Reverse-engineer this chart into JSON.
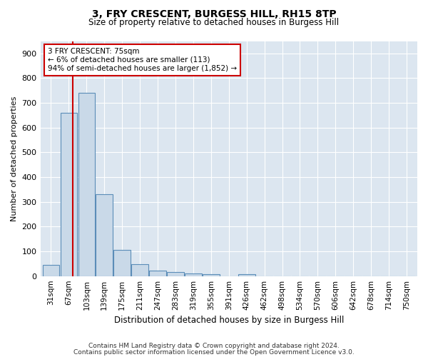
{
  "title1": "3, FRY CRESCENT, BURGESS HILL, RH15 8TP",
  "title2": "Size of property relative to detached houses in Burgess Hill",
  "xlabel": "Distribution of detached houses by size in Burgess Hill",
  "ylabel": "Number of detached properties",
  "bar_labels": [
    "31sqm",
    "67sqm",
    "103sqm",
    "139sqm",
    "175sqm",
    "211sqm",
    "247sqm",
    "283sqm",
    "319sqm",
    "355sqm",
    "391sqm",
    "426sqm",
    "462sqm",
    "498sqm",
    "534sqm",
    "570sqm",
    "606sqm",
    "642sqm",
    "678sqm",
    "714sqm",
    "750sqm"
  ],
  "bar_values": [
    45,
    660,
    740,
    330,
    105,
    48,
    23,
    15,
    10,
    8,
    0,
    8,
    0,
    0,
    0,
    0,
    0,
    0,
    0,
    0,
    0
  ],
  "bar_color": "#c9d9e8",
  "bar_edge_color": "#5b8db8",
  "vline_color": "#cc0000",
  "annotation_line1": "3 FRY CRESCENT: 75sqm",
  "annotation_line2": "← 6% of detached houses are smaller (113)",
  "annotation_line3": "94% of semi-detached houses are larger (1,852) →",
  "annotation_box_color": "#ffffff",
  "annotation_box_edge": "#cc0000",
  "ylim": [
    0,
    950
  ],
  "yticks": [
    0,
    100,
    200,
    300,
    400,
    500,
    600,
    700,
    800,
    900
  ],
  "footer1": "Contains HM Land Registry data © Crown copyright and database right 2024.",
  "footer2": "Contains public sector information licensed under the Open Government Licence v3.0.",
  "plot_bg_color": "#dce6f0"
}
